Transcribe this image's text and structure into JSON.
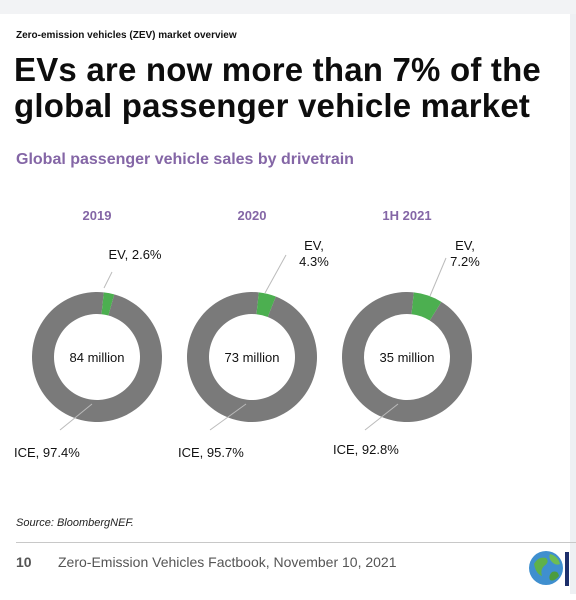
{
  "header": {
    "kicker": "Zero-emission vehicles (ZEV) market overview",
    "title": "EVs are now more than 7% of the global passenger vehicle market",
    "subtitle": "Global passenger vehicle sales by drivetrain"
  },
  "chart_data": {
    "type": "pie",
    "variant": "donut",
    "title": "Global passenger vehicle sales by drivetrain",
    "colors": {
      "EV": "#4caf50",
      "ICE": "#7a7a7a"
    },
    "charts": [
      {
        "period": "2019",
        "center_label": "84 million",
        "slices": [
          {
            "name": "EV",
            "value": 2.6,
            "label_lines": [
              "EV, 2.6%"
            ]
          },
          {
            "name": "ICE",
            "value": 97.4,
            "label_lines": [
              "ICE, 97.4%"
            ]
          }
        ]
      },
      {
        "period": "2020",
        "center_label": "73 million",
        "slices": [
          {
            "name": "EV",
            "value": 4.3,
            "label_lines": [
              "EV,",
              "4.3%"
            ]
          },
          {
            "name": "ICE",
            "value": 95.7,
            "label_lines": [
              "ICE, 95.7%"
            ]
          }
        ]
      },
      {
        "period": "1H 2021",
        "center_label": "35 million",
        "slices": [
          {
            "name": "EV",
            "value": 7.2,
            "label_lines": [
              "EV,",
              "7.2%"
            ]
          },
          {
            "name": "ICE",
            "value": 92.8,
            "label_lines": [
              "ICE, 92.8%"
            ]
          }
        ]
      }
    ]
  },
  "footer": {
    "source": "Source: BloombergNEF.",
    "page_number": "10",
    "text": "Zero-Emission Vehicles Factbook, November 10, 2021"
  }
}
